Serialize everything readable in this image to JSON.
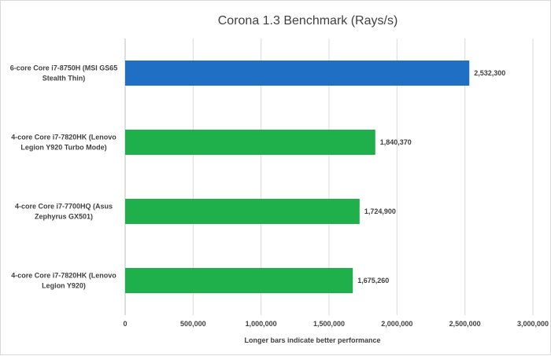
{
  "chart_data": {
    "type": "bar",
    "orientation": "horizontal",
    "title": "Corona 1.3 Benchmark (Rays/s)",
    "xlabel": "Longer bars indicate better performance",
    "ylabel": "",
    "categories": [
      [
        "6-core Core i7-8750H (MSI GS65",
        "Stealth Thin)"
      ],
      [
        "4-core Core i7-7820HK (Lenovo",
        "Legion Y920 Turbo Mode)"
      ],
      [
        "4-core Core i7-7700HQ (Asus",
        "Zephyrus GX501)"
      ],
      [
        "4-core Core i7-7820HK (Lenovo",
        "Legion Y920)"
      ]
    ],
    "values": [
      2532300,
      1840370,
      1724900,
      1675260
    ],
    "value_labels": [
      "2,532,300",
      "1,840,370",
      "1,724,900",
      "1,675,260"
    ],
    "bar_colors": [
      "#1f6fc5",
      "#1fb04b",
      "#1fb04b",
      "#1fb04b"
    ],
    "xlim": [
      0,
      3000000
    ],
    "xticks": [
      0,
      500000,
      1000000,
      1500000,
      2000000,
      2500000,
      3000000
    ],
    "xtick_labels": [
      "0",
      "500,000",
      "1,000,000",
      "1,500,000",
      "2,000,000",
      "2,500,000",
      "3,000,000"
    ],
    "grid": "vertical",
    "legend": "none"
  }
}
